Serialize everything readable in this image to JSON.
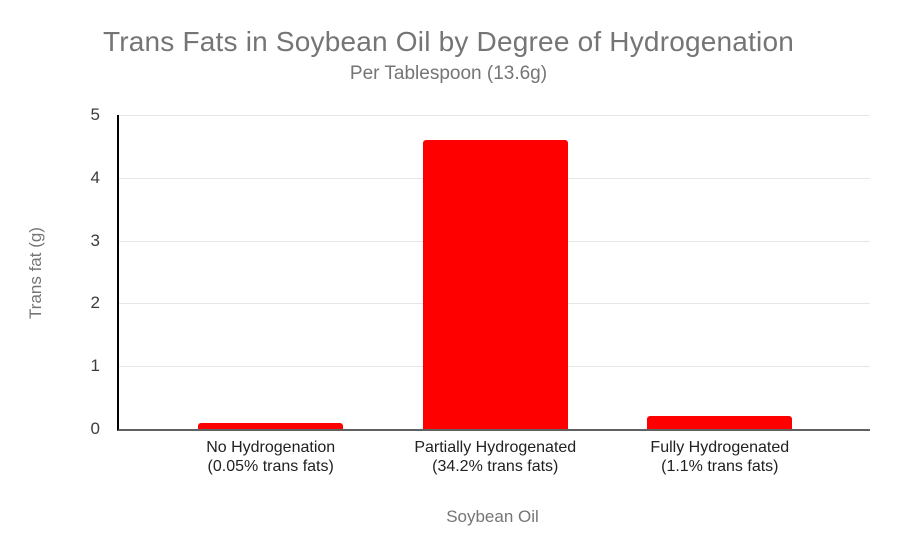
{
  "chart_data": {
    "type": "bar",
    "title": "Trans Fats in Soybean Oil by Degree of Hydrogenation",
    "subtitle": "Per Tablespoon (13.6g)",
    "xlabel": "Soybean Oil",
    "ylabel": "Trans fat (g)",
    "categories": [
      "No Hydrogenation",
      "Partially Hydrogenated",
      "Fully Hydrogenated"
    ],
    "category_sublabels": [
      "(0.05% trans fats)",
      "(34.2% trans fats)",
      "(1.1% trans fats)"
    ],
    "values": [
      0.1,
      4.6,
      0.2
    ],
    "ylim": [
      0,
      5
    ],
    "yticks": [
      0,
      1,
      2,
      3,
      4,
      5
    ],
    "grid": true,
    "legend_position": "none"
  },
  "colors": {
    "bar": "#ff0000",
    "title_text": "#757575",
    "axis_title_text": "#757575",
    "tick_text": "#3c3c3c",
    "category_text": "#212121",
    "gridline": "#e6e6e6",
    "baseline": "#616161",
    "y_axis_line": "#000000",
    "background": "#ffffff"
  }
}
